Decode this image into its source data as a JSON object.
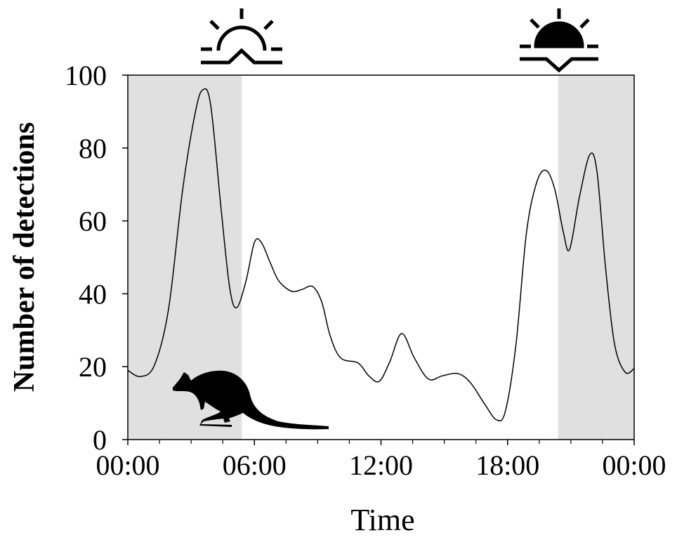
{
  "chart_data": {
    "type": "line",
    "x_label": "Time",
    "y_label": "Number of detections",
    "x": [
      0,
      0.6,
      1.26,
      1.93,
      2.6,
      3.2,
      3.56,
      3.93,
      4.43,
      4.83,
      5.16,
      5.6,
      6,
      6.33,
      6.76,
      7.16,
      7.76,
      8.26,
      8.76,
      9.19,
      9.59,
      10.09,
      10.92,
      11.42,
      11.92,
      12.42,
      12.98,
      13.58,
      14.25,
      14.91,
      15.65,
      16.24,
      16.91,
      17.48,
      17.9,
      18.4,
      18.9,
      19.4,
      19.84,
      20.24,
      20.64,
      20.94,
      21.41,
      21.9,
      22.24,
      22.64,
      23.07,
      23.57,
      24
    ],
    "series": [
      {
        "color": "#000000",
        "values": [
          19,
          17.3,
          20.4,
          35.8,
          68.6,
          89.8,
          96,
          91.7,
          62.8,
          41.6,
          36.2,
          43.5,
          54.1,
          54.1,
          48.4,
          43.5,
          40.7,
          41.2,
          42,
          37.8,
          28.5,
          22.4,
          21,
          17.5,
          16,
          21.4,
          29.1,
          22.4,
          16.6,
          17.5,
          18.1,
          15.6,
          9.8,
          5.4,
          7.9,
          26.2,
          57,
          70.9,
          73.8,
          68.6,
          57,
          52.2,
          66.7,
          78.2,
          73.4,
          47.4,
          26.2,
          18.5,
          19.5
        ]
      }
    ],
    "xlim": [
      0,
      24
    ],
    "ylim": [
      0,
      100
    ],
    "xticks": [
      {
        "value": 0,
        "label": "00:00"
      },
      {
        "value": 6,
        "label": "06:00"
      },
      {
        "value": 12,
        "label": "12:00"
      },
      {
        "value": 18,
        "label": "18:00"
      },
      {
        "value": 24,
        "label": "00:00"
      }
    ],
    "x_minor_ticks": [
      1.5,
      3,
      4.5,
      7.5,
      9,
      10.5,
      13.5,
      15,
      16.5,
      19.5,
      21,
      22.5
    ],
    "yticks": [
      0,
      20,
      40,
      60,
      80,
      100
    ],
    "night_shading": [
      [
        0,
        5.4
      ],
      [
        20.4,
        24
      ]
    ],
    "shading_color": "#e0e0e0"
  }
}
